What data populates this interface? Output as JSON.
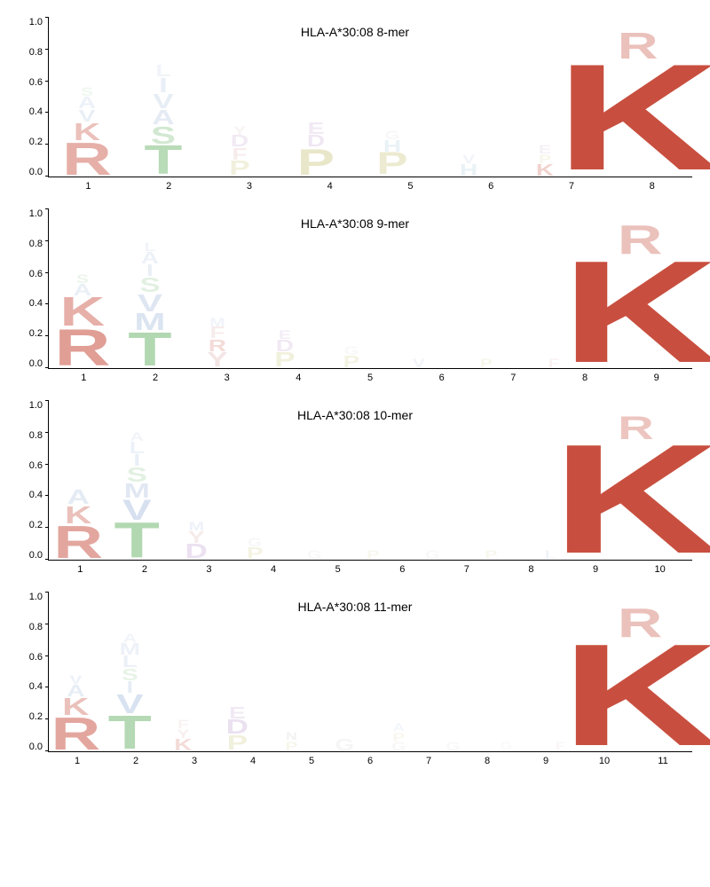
{
  "yticks": [
    "1.0",
    "0.8",
    "0.6",
    "0.4",
    "0.2",
    "0.0"
  ],
  "ylim": [
    0,
    1
  ],
  "title_fontsize": 14,
  "axis_fontsize": 11,
  "colors": {
    "R": "#c84f3f",
    "K": "#c84f3f",
    "T": "#7fbf7f",
    "S": "#7fbf7f",
    "V": "#8ca8d2",
    "A": "#8ca8d2",
    "I": "#8ca8d2",
    "L": "#8ca8d2",
    "M": "#8ca8d2",
    "P": "#c9c57a",
    "D": "#b38bc4",
    "E": "#b38bc4",
    "F": "#d49a9a",
    "Y": "#d49a9a",
    "H": "#8bbdd1",
    "G": "#cccccc"
  },
  "panels": [
    {
      "title": "HLA-A*30:08 8-mer",
      "positions": 8,
      "columns": [
        [
          {
            "l": "R",
            "h": 0.22,
            "a": 0.45
          },
          {
            "l": "K",
            "h": 0.12,
            "a": 0.35
          },
          {
            "l": "V",
            "h": 0.08,
            "a": 0.18
          },
          {
            "l": "A",
            "h": 0.08,
            "a": 0.15
          },
          {
            "l": "S",
            "h": 0.06,
            "a": 0.12
          }
        ],
        [
          {
            "l": "T",
            "h": 0.2,
            "a": 0.55
          },
          {
            "l": "S",
            "h": 0.12,
            "a": 0.35
          },
          {
            "l": "A",
            "h": 0.1,
            "a": 0.22
          },
          {
            "l": "V",
            "h": 0.1,
            "a": 0.2
          },
          {
            "l": "I",
            "h": 0.1,
            "a": 0.18
          },
          {
            "l": "L",
            "h": 0.08,
            "a": 0.12
          }
        ],
        [
          {
            "l": "P",
            "h": 0.1,
            "a": 0.25
          },
          {
            "l": "F",
            "h": 0.08,
            "a": 0.18
          },
          {
            "l": "D",
            "h": 0.08,
            "a": 0.18
          },
          {
            "l": "Y",
            "h": 0.06,
            "a": 0.12
          }
        ],
        [
          {
            "l": "P",
            "h": 0.18,
            "a": 0.4
          },
          {
            "l": "D",
            "h": 0.08,
            "a": 0.2
          },
          {
            "l": "E",
            "h": 0.08,
            "a": 0.18
          }
        ],
        [
          {
            "l": "P",
            "h": 0.15,
            "a": 0.35
          },
          {
            "l": "H",
            "h": 0.08,
            "a": 0.18
          },
          {
            "l": "G",
            "h": 0.06,
            "a": 0.15
          }
        ],
        [
          {
            "l": "H",
            "h": 0.08,
            "a": 0.18
          },
          {
            "l": "V",
            "h": 0.06,
            "a": 0.12
          }
        ],
        [
          {
            "l": "K",
            "h": 0.08,
            "a": 0.25
          },
          {
            "l": "P",
            "h": 0.06,
            "a": 0.15
          },
          {
            "l": "E",
            "h": 0.06,
            "a": 0.12
          }
        ],
        [
          {
            "l": "K",
            "h": 0.73,
            "a": 1.0
          },
          {
            "l": "R",
            "h": 0.18,
            "a": 0.35
          }
        ]
      ]
    },
    {
      "title": "HLA-A*30:08 9-mer",
      "positions": 9,
      "columns": [
        [
          {
            "l": "R",
            "h": 0.25,
            "a": 0.55
          },
          {
            "l": "K",
            "h": 0.2,
            "a": 0.45
          },
          {
            "l": "A",
            "h": 0.08,
            "a": 0.18
          },
          {
            "l": "S",
            "h": 0.06,
            "a": 0.15
          }
        ],
        [
          {
            "l": "T",
            "h": 0.23,
            "a": 0.6
          },
          {
            "l": "M",
            "h": 0.12,
            "a": 0.3
          },
          {
            "l": "V",
            "h": 0.12,
            "a": 0.28
          },
          {
            "l": "S",
            "h": 0.1,
            "a": 0.22
          },
          {
            "l": "I",
            "h": 0.08,
            "a": 0.18
          },
          {
            "l": "A",
            "h": 0.08,
            "a": 0.15
          },
          {
            "l": "L",
            "h": 0.06,
            "a": 0.12
          }
        ],
        [
          {
            "l": "Y",
            "h": 0.1,
            "a": 0.25
          },
          {
            "l": "R",
            "h": 0.08,
            "a": 0.2
          },
          {
            "l": "F",
            "h": 0.08,
            "a": 0.18
          },
          {
            "l": "M",
            "h": 0.06,
            "a": 0.12
          }
        ],
        [
          {
            "l": "P",
            "h": 0.1,
            "a": 0.25
          },
          {
            "l": "D",
            "h": 0.08,
            "a": 0.18
          },
          {
            "l": "E",
            "h": 0.06,
            "a": 0.15
          }
        ],
        [
          {
            "l": "P",
            "h": 0.08,
            "a": 0.2
          },
          {
            "l": "G",
            "h": 0.06,
            "a": 0.12
          }
        ],
        [
          {
            "l": "V",
            "h": 0.06,
            "a": 0.12
          }
        ],
        [
          {
            "l": "P",
            "h": 0.06,
            "a": 0.15
          }
        ],
        [
          {
            "l": "F",
            "h": 0.06,
            "a": 0.12
          }
        ],
        [
          {
            "l": "K",
            "h": 0.7,
            "a": 1.0
          },
          {
            "l": "R",
            "h": 0.2,
            "a": 0.35
          }
        ]
      ]
    },
    {
      "title": "HLA-A*30:08 10-mer",
      "positions": 10,
      "columns": [
        [
          {
            "l": "R",
            "h": 0.22,
            "a": 0.5
          },
          {
            "l": "K",
            "h": 0.12,
            "a": 0.35
          },
          {
            "l": "A",
            "h": 0.1,
            "a": 0.22
          }
        ],
        [
          {
            "l": "T",
            "h": 0.24,
            "a": 0.6
          },
          {
            "l": "V",
            "h": 0.14,
            "a": 0.35
          },
          {
            "l": "M",
            "h": 0.1,
            "a": 0.25
          },
          {
            "l": "S",
            "h": 0.1,
            "a": 0.22
          },
          {
            "l": "I",
            "h": 0.08,
            "a": 0.18
          },
          {
            "l": "L",
            "h": 0.08,
            "a": 0.15
          },
          {
            "l": "A",
            "h": 0.06,
            "a": 0.12
          }
        ],
        [
          {
            "l": "D",
            "h": 0.1,
            "a": 0.25
          },
          {
            "l": "Y",
            "h": 0.08,
            "a": 0.2
          },
          {
            "l": "M",
            "h": 0.06,
            "a": 0.15
          }
        ],
        [
          {
            "l": "P",
            "h": 0.08,
            "a": 0.2
          },
          {
            "l": "G",
            "h": 0.06,
            "a": 0.15
          }
        ],
        [
          {
            "l": "G",
            "h": 0.06,
            "a": 0.12
          }
        ],
        [
          {
            "l": "P",
            "h": 0.06,
            "a": 0.12
          }
        ],
        [
          {
            "l": "G",
            "h": 0.06,
            "a": 0.12
          }
        ],
        [
          {
            "l": "P",
            "h": 0.06,
            "a": 0.12
          }
        ],
        [
          {
            "l": "L",
            "h": 0.06,
            "a": 0.12
          }
        ],
        [
          {
            "l": "K",
            "h": 0.75,
            "a": 1.0
          },
          {
            "l": "R",
            "h": 0.16,
            "a": 0.32
          }
        ]
      ]
    },
    {
      "title": "HLA-A*30:08 11-mer",
      "positions": 11,
      "columns": [
        [
          {
            "l": "R",
            "h": 0.22,
            "a": 0.5
          },
          {
            "l": "K",
            "h": 0.12,
            "a": 0.35
          },
          {
            "l": "A",
            "h": 0.08,
            "a": 0.2
          },
          {
            "l": "V",
            "h": 0.06,
            "a": 0.15
          }
        ],
        [
          {
            "l": "T",
            "h": 0.23,
            "a": 0.58
          },
          {
            "l": "V",
            "h": 0.13,
            "a": 0.33
          },
          {
            "l": "I",
            "h": 0.08,
            "a": 0.2
          },
          {
            "l": "S",
            "h": 0.08,
            "a": 0.18
          },
          {
            "l": "L",
            "h": 0.08,
            "a": 0.16
          },
          {
            "l": "M",
            "h": 0.08,
            "a": 0.15
          },
          {
            "l": "A",
            "h": 0.06,
            "a": 0.12
          }
        ],
        [
          {
            "l": "K",
            "h": 0.08,
            "a": 0.2
          },
          {
            "l": "Y",
            "h": 0.06,
            "a": 0.15
          },
          {
            "l": "F",
            "h": 0.06,
            "a": 0.12
          }
        ],
        [
          {
            "l": "P",
            "h": 0.1,
            "a": 0.25
          },
          {
            "l": "D",
            "h": 0.1,
            "a": 0.25
          },
          {
            "l": "E",
            "h": 0.08,
            "a": 0.18
          }
        ],
        [
          {
            "l": "P",
            "h": 0.06,
            "a": 0.15
          },
          {
            "l": "N",
            "h": 0.05,
            "a": 0.12
          }
        ],
        [
          {
            "l": "G",
            "h": 0.08,
            "a": 0.18
          }
        ],
        [
          {
            "l": "G",
            "h": 0.06,
            "a": 0.15
          },
          {
            "l": "P",
            "h": 0.06,
            "a": 0.12
          },
          {
            "l": "A",
            "h": 0.05,
            "a": 0.1
          }
        ],
        [
          {
            "l": "G",
            "h": 0.06,
            "a": 0.12
          }
        ],
        [
          {
            "l": "G",
            "h": 0.05,
            "a": 0.1
          }
        ],
        [
          {
            "l": "F",
            "h": 0.05,
            "a": 0.1
          }
        ],
        [
          {
            "l": "K",
            "h": 0.7,
            "a": 1.0
          },
          {
            "l": "R",
            "h": 0.2,
            "a": 0.35
          }
        ]
      ]
    }
  ]
}
